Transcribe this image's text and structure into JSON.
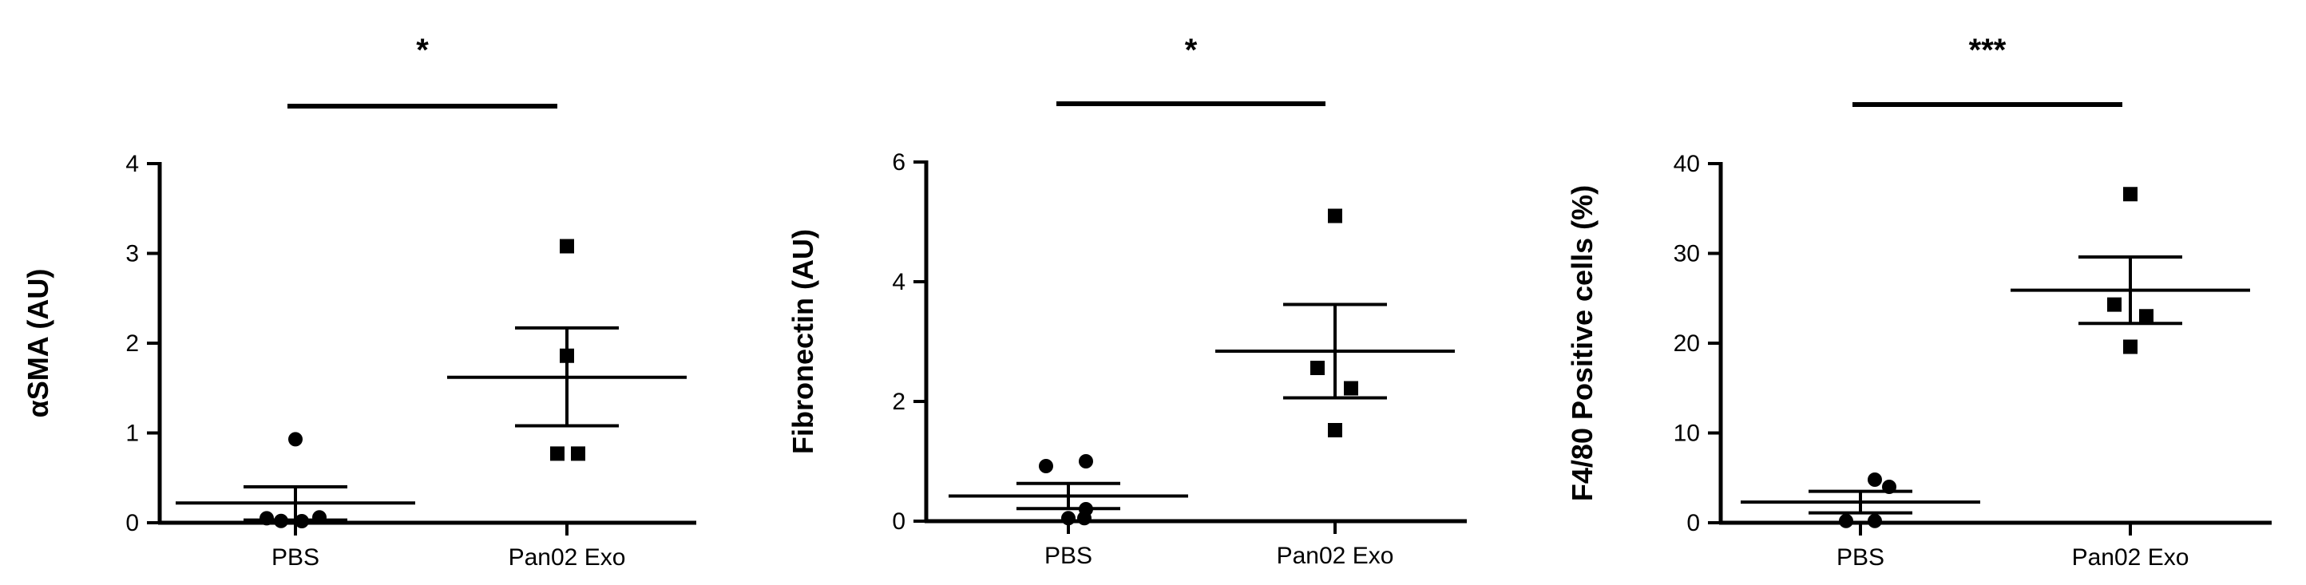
{
  "chart_data": [
    {
      "type": "scatter",
      "ylabel": "αSMA (AU)",
      "categories": [
        "PBS",
        "Pan02 Exo"
      ],
      "ylim": [
        0,
        4
      ],
      "yticks": [
        "0",
        "1",
        "2",
        "3",
        "4"
      ],
      "significance": "*",
      "series": [
        {
          "category": "PBS",
          "marker": "circle",
          "values": [
            0.93,
            0.05,
            0.02,
            0.0,
            0.06
          ],
          "mean": 0.22,
          "sem_low": 0.03,
          "sem_high": 0.4
        },
        {
          "category": "Pan02 Exo",
          "marker": "square",
          "values": [
            3.08,
            1.86,
            0.77,
            0.77
          ],
          "mean": 1.62,
          "sem_low": 1.08,
          "sem_high": 2.17
        }
      ]
    },
    {
      "type": "scatter",
      "ylabel": "Fibronectin (AU)",
      "categories": [
        "PBS",
        "Pan02 Exo"
      ],
      "ylim": [
        0,
        6
      ],
      "yticks": [
        "0",
        "2",
        "4",
        "6"
      ],
      "significance": "*",
      "series": [
        {
          "category": "PBS",
          "marker": "circle",
          "values": [
            1.0,
            0.92,
            0.2,
            0.05,
            0.05
          ],
          "mean": 0.42,
          "sem_low": 0.21,
          "sem_high": 0.63
        },
        {
          "category": "Pan02 Exo",
          "marker": "square",
          "values": [
            5.1,
            2.56,
            2.22,
            1.52
          ],
          "mean": 2.84,
          "sem_low": 2.06,
          "sem_high": 3.62
        }
      ]
    },
    {
      "type": "scatter",
      "ylabel": "F4/80 Positive cells (%)",
      "categories": [
        "PBS",
        "Pan02 Exo"
      ],
      "ylim": [
        0,
        40
      ],
      "yticks": [
        "0",
        "10",
        "20",
        "30",
        "40"
      ],
      "significance": "***",
      "series": [
        {
          "category": "PBS",
          "marker": "circle",
          "values": [
            4.8,
            4.0,
            0.2,
            0.2
          ],
          "mean": 2.3,
          "sem_low": 1.1,
          "sem_high": 3.5
        },
        {
          "category": "Pan02 Exo",
          "marker": "square",
          "values": [
            36.6,
            24.3,
            23.0,
            19.6
          ],
          "mean": 25.9,
          "sem_low": 22.2,
          "sem_high": 29.6
        }
      ]
    }
  ]
}
